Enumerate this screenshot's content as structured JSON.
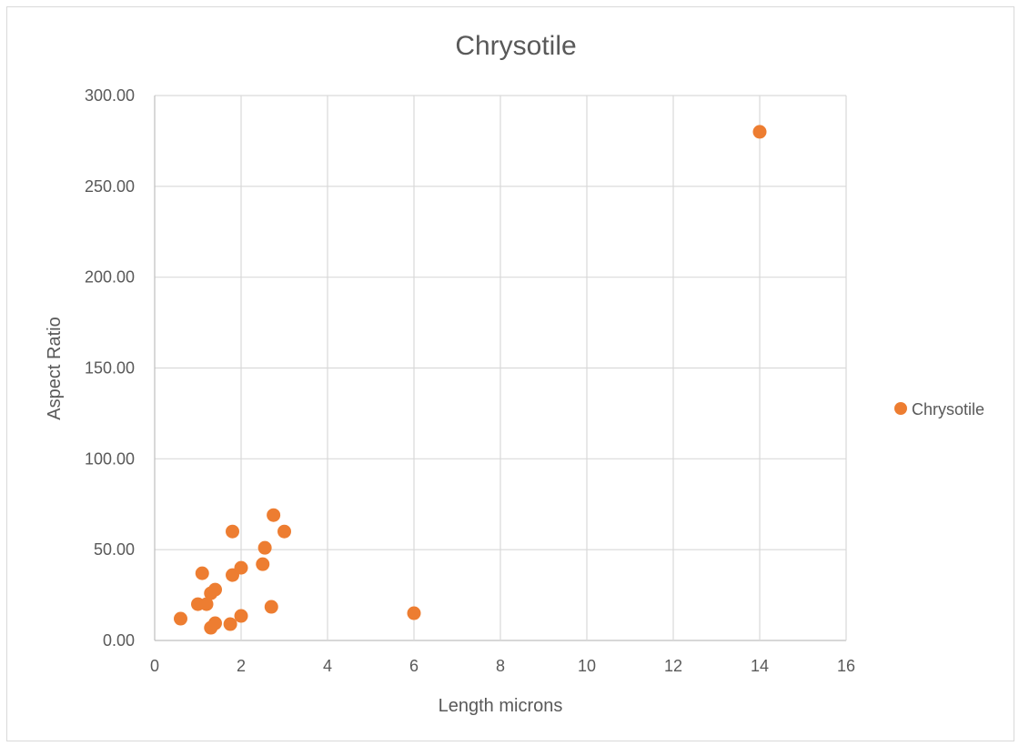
{
  "chart_data": {
    "type": "scatter",
    "title": "Chrysotile",
    "xlabel": "Length microns",
    "ylabel": "Aspect Ratio",
    "xlim": [
      0,
      16
    ],
    "ylim": [
      0,
      300
    ],
    "x_ticks": [
      "0",
      "2",
      "4",
      "6",
      "8",
      "10",
      "12",
      "14",
      "16"
    ],
    "y_ticks": [
      "0.00",
      "50.00",
      "100.00",
      "150.00",
      "200.00",
      "250.00",
      "300.00"
    ],
    "grid": true,
    "legend_position": "right",
    "series": [
      {
        "name": "Chrysotile",
        "color": "#ED7D31",
        "points": [
          {
            "x": 0.6,
            "y": 12
          },
          {
            "x": 1.0,
            "y": 20
          },
          {
            "x": 1.1,
            "y": 37
          },
          {
            "x": 1.2,
            "y": 20
          },
          {
            "x": 1.3,
            "y": 26
          },
          {
            "x": 1.3,
            "y": 7
          },
          {
            "x": 1.4,
            "y": 28
          },
          {
            "x": 1.4,
            "y": 9.5
          },
          {
            "x": 1.75,
            "y": 9
          },
          {
            "x": 1.8,
            "y": 36
          },
          {
            "x": 1.8,
            "y": 60
          },
          {
            "x": 2.0,
            "y": 40
          },
          {
            "x": 2.0,
            "y": 13.5
          },
          {
            "x": 2.5,
            "y": 42
          },
          {
            "x": 2.55,
            "y": 51
          },
          {
            "x": 2.7,
            "y": 18.5
          },
          {
            "x": 2.75,
            "y": 69
          },
          {
            "x": 3.0,
            "y": 60
          },
          {
            "x": 6.0,
            "y": 15
          },
          {
            "x": 14.0,
            "y": 280
          }
        ]
      }
    ]
  }
}
